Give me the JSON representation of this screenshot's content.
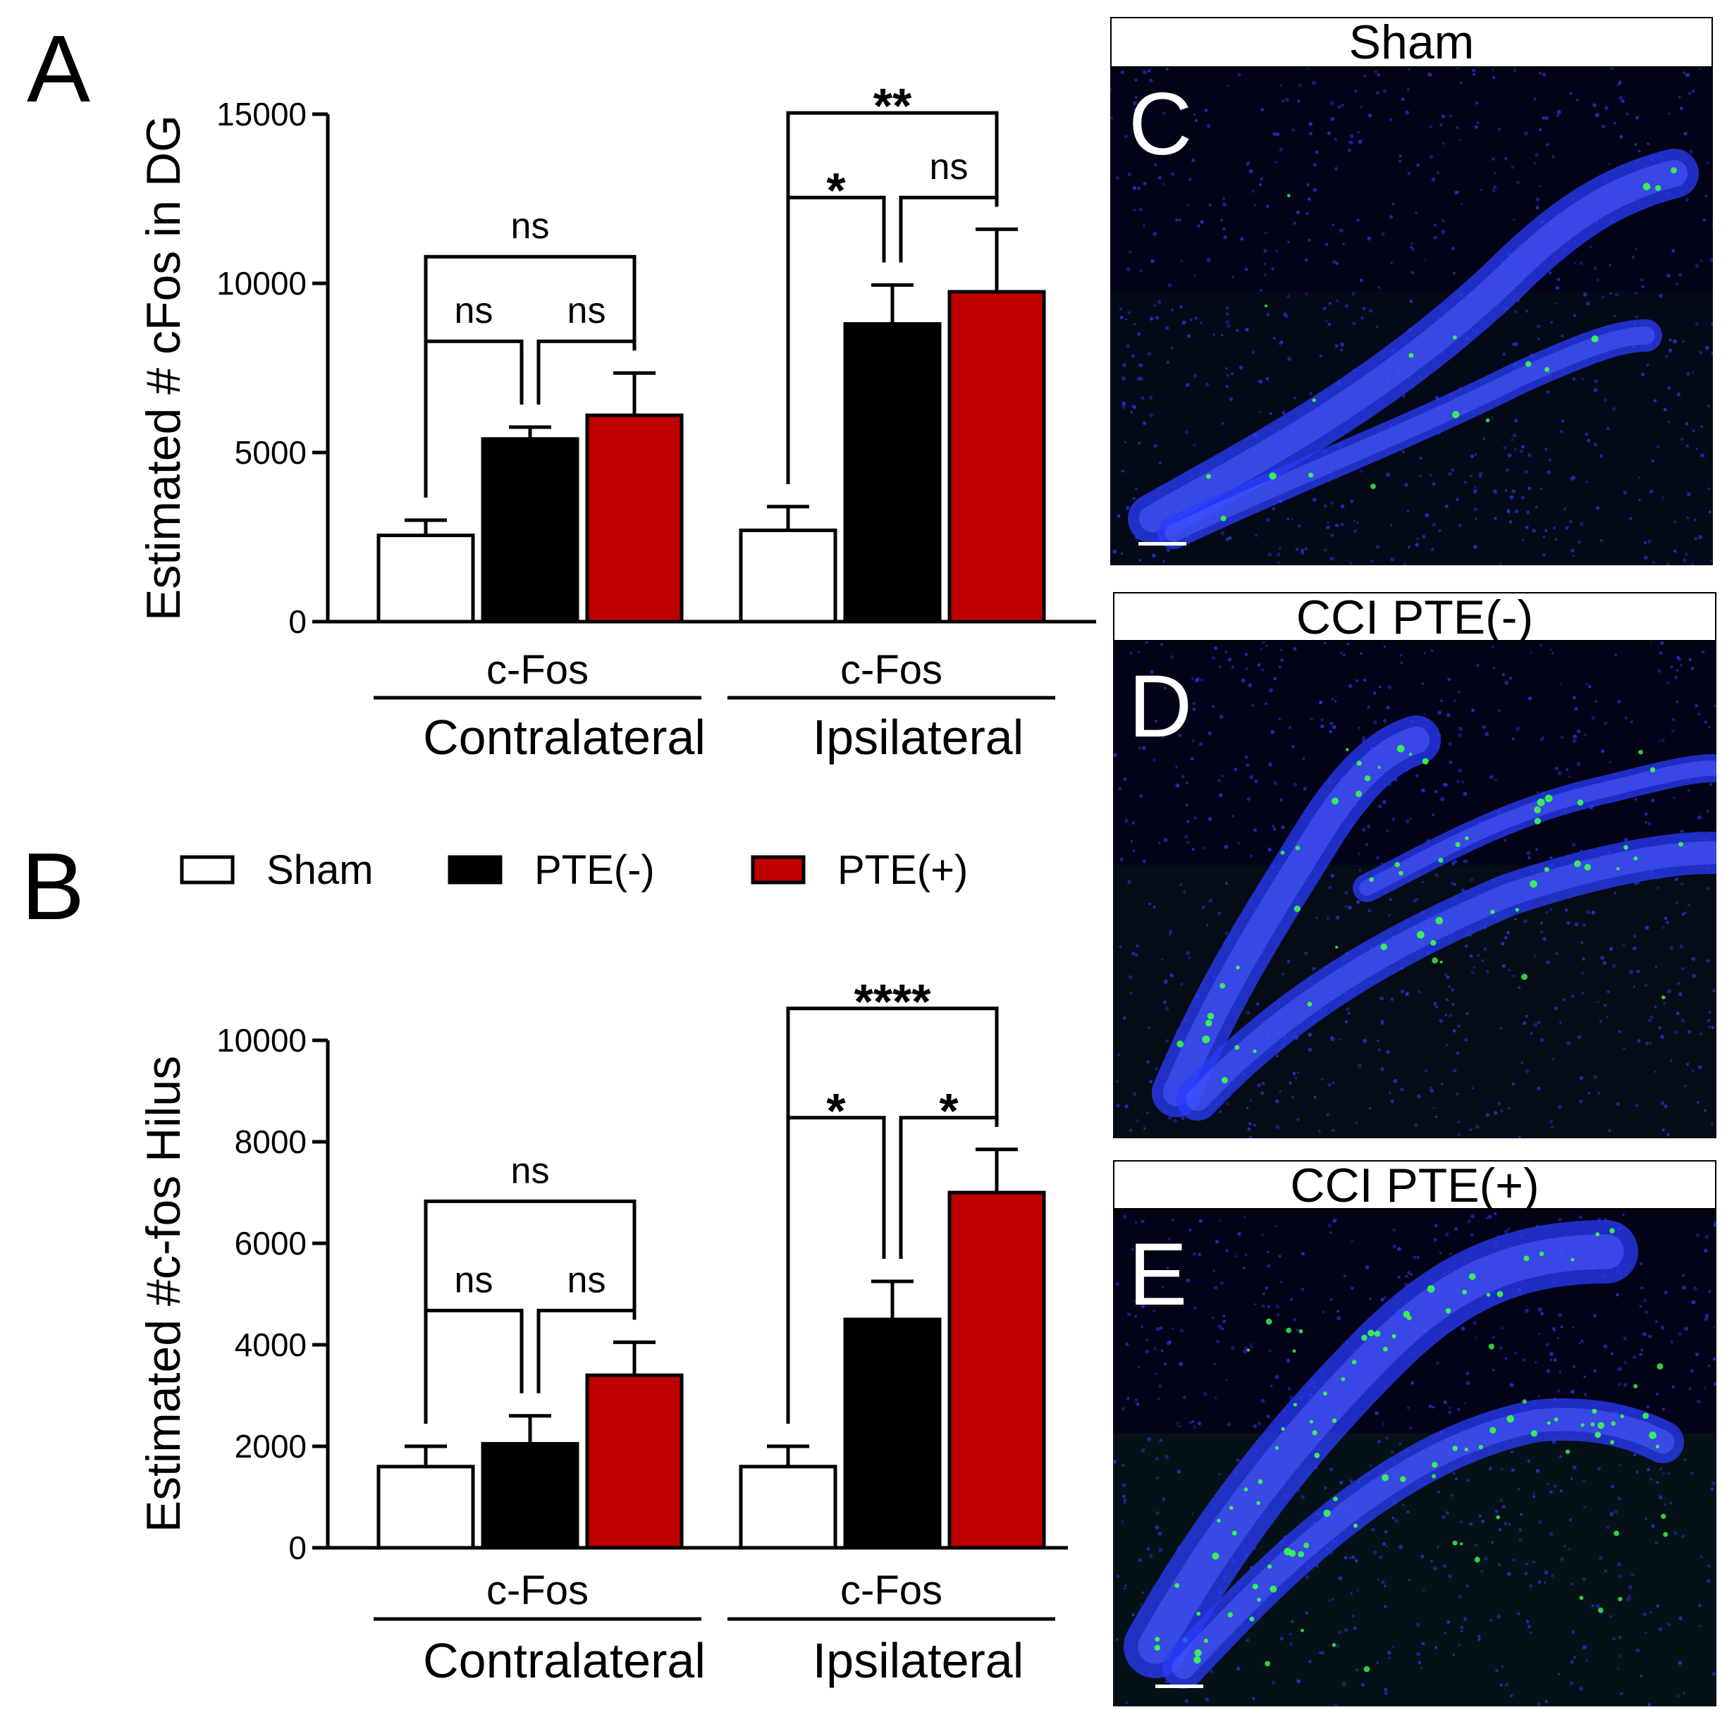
{
  "panels": {
    "a": {
      "letter": "A"
    },
    "b": {
      "letter": "B"
    }
  },
  "legend": {
    "items": [
      {
        "label": "Sham",
        "color": "#ffffff"
      },
      {
        "label": "PTE(-)",
        "color": "#000000"
      },
      {
        "label": "PTE(+)",
        "color": "#c00000"
      }
    ]
  },
  "chart_data": [
    {
      "type": "bar",
      "ylabel": "Estimated # cFos in DG",
      "ylim": [
        0,
        15000
      ],
      "yticks": [
        0,
        5000,
        10000,
        15000
      ],
      "groups": [
        {
          "sublabel": "c-Fos",
          "label": "Contralateral"
        },
        {
          "sublabel": "c-Fos",
          "label": "Ipsilateral"
        }
      ],
      "series": [
        {
          "name": "Sham",
          "color": "#ffffff",
          "values": [
            2550,
            2700
          ],
          "errors": [
            450,
            700
          ]
        },
        {
          "name": "PTE(-)",
          "color": "#000000",
          "values": [
            5400,
            8800
          ],
          "errors": [
            350,
            1150
          ]
        },
        {
          "name": "PTE(+)",
          "color": "#c00000",
          "values": [
            6100,
            9750
          ],
          "errors": [
            1250,
            1850
          ]
        }
      ],
      "comparisons": [
        {
          "group": 0,
          "from": 0,
          "to": 1,
          "label": "ns",
          "level": 1
        },
        {
          "group": 0,
          "from": 1,
          "to": 2,
          "label": "ns",
          "level": 1
        },
        {
          "group": 0,
          "from": 0,
          "to": 2,
          "label": "ns",
          "level": 2
        },
        {
          "group": 1,
          "from": 0,
          "to": 1,
          "label": "*",
          "level": 1
        },
        {
          "group": 1,
          "from": 1,
          "to": 2,
          "label": "ns",
          "level": 1
        },
        {
          "group": 1,
          "from": 0,
          "to": 2,
          "label": "**",
          "level": 2
        }
      ]
    },
    {
      "type": "bar",
      "ylabel": "Estimated #c-fos Hilus",
      "ylim": [
        0,
        10000
      ],
      "yticks": [
        0,
        2000,
        4000,
        6000,
        8000,
        10000
      ],
      "groups": [
        {
          "sublabel": "c-Fos",
          "label": "Contralateral"
        },
        {
          "sublabel": "c-Fos",
          "label": "Ipsilateral"
        }
      ],
      "series": [
        {
          "name": "Sham",
          "color": "#ffffff",
          "values": [
            1600,
            1600
          ],
          "errors": [
            400,
            400
          ]
        },
        {
          "name": "PTE(-)",
          "color": "#000000",
          "values": [
            2050,
            4500
          ],
          "errors": [
            550,
            750
          ]
        },
        {
          "name": "PTE(+)",
          "color": "#c00000",
          "values": [
            3400,
            7000
          ],
          "errors": [
            650,
            850
          ]
        }
      ],
      "comparisons": [
        {
          "group": 0,
          "from": 0,
          "to": 1,
          "label": "ns",
          "level": 1
        },
        {
          "group": 0,
          "from": 1,
          "to": 2,
          "label": "ns",
          "level": 1
        },
        {
          "group": 0,
          "from": 0,
          "to": 2,
          "label": "ns",
          "level": 2
        },
        {
          "group": 1,
          "from": 0,
          "to": 1,
          "label": "*",
          "level": 1
        },
        {
          "group": 1,
          "from": 1,
          "to": 2,
          "label": "*",
          "level": 1
        },
        {
          "group": 1,
          "from": 0,
          "to": 2,
          "label": "****",
          "level": 2
        }
      ]
    }
  ],
  "micrographs": [
    {
      "letter": "C",
      "title": "Sham",
      "stain_colors": {
        "nuclei": "#2a3cff",
        "cfos": "#39ff4a"
      }
    },
    {
      "letter": "D",
      "title": "CCI PTE(-)",
      "stain_colors": {
        "nuclei": "#2a3cff",
        "cfos": "#39ff4a"
      }
    },
    {
      "letter": "E",
      "title": "CCI PTE(+)",
      "stain_colors": {
        "nuclei": "#2a3cff",
        "cfos": "#39ff4a"
      }
    }
  ]
}
